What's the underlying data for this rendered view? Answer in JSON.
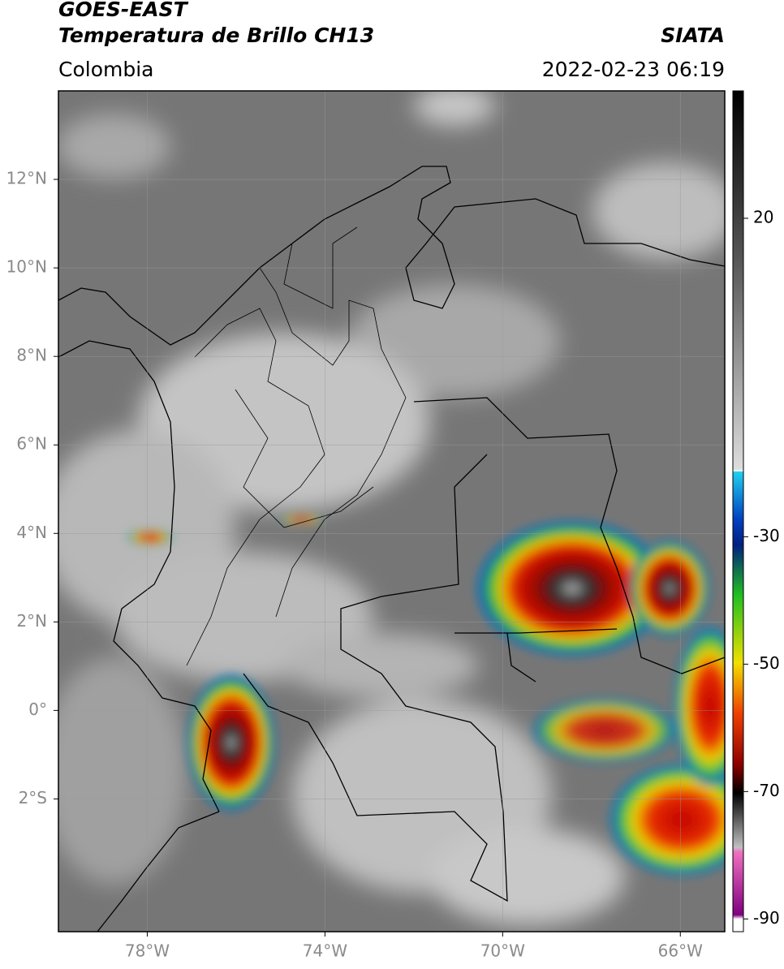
{
  "header": {
    "line1": "GOES-EAST",
    "title": "Temperatura de Brillo CH13",
    "source": "SIATA",
    "region": "Colombia",
    "datetime": "2022-02-23 06:19"
  },
  "map": {
    "xlim": [
      -80,
      -65
    ],
    "ylim": [
      -5,
      14
    ],
    "xticks": [
      {
        "value": -78,
        "label": "78°W"
      },
      {
        "value": -74,
        "label": "74°W"
      },
      {
        "value": -70,
        "label": "70°W"
      },
      {
        "value": -66,
        "label": "66°W"
      }
    ],
    "yticks": [
      {
        "value": 12,
        "label": "12°N"
      },
      {
        "value": 10,
        "label": "10°N"
      },
      {
        "value": 8,
        "label": "8°N"
      },
      {
        "value": 6,
        "label": "6°N"
      },
      {
        "value": 4,
        "label": "4°N"
      },
      {
        "value": 2,
        "label": "2°N"
      },
      {
        "value": 0,
        "label": "0°"
      },
      {
        "value": -2,
        "label": "2°S"
      }
    ],
    "grid": true
  },
  "colorbar": {
    "lim": [
      -92,
      40
    ],
    "ticks": [
      20,
      -30,
      -50,
      -70,
      -90
    ]
  }
}
